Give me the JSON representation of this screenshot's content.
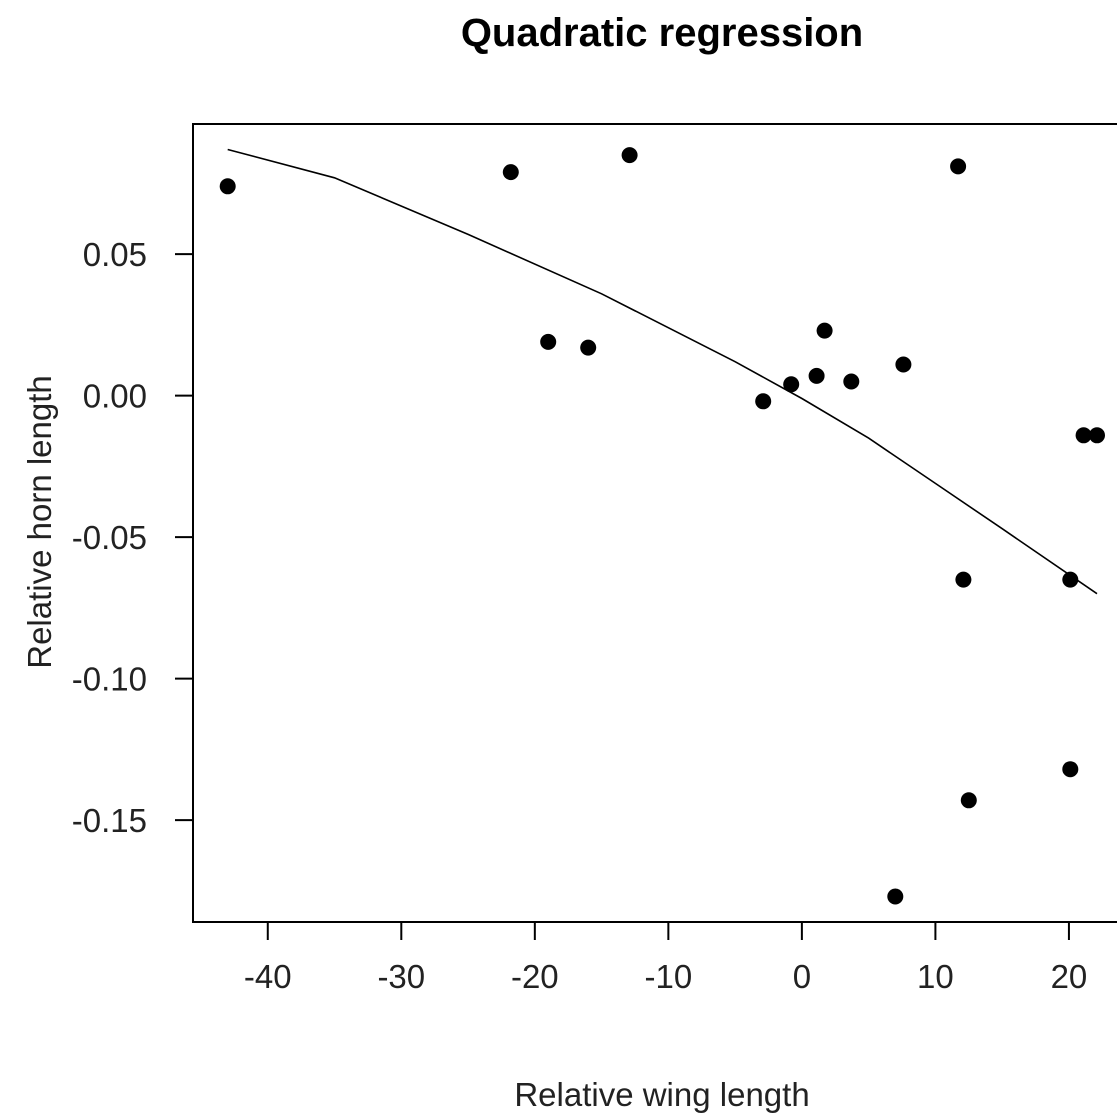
{
  "chart_data": {
    "type": "scatter",
    "title": "Quadratic regression",
    "xlabel": "Relative wing length",
    "ylabel": "Relative horn length",
    "xlim": [
      -45.6,
      23.6
    ],
    "ylim": [
      -0.186,
      0.096
    ],
    "x_ticks": [
      -40,
      -30,
      -20,
      -10,
      0,
      10,
      20
    ],
    "x_tick_labels": [
      "-40",
      "-30",
      "-20",
      "-10",
      "0",
      "10",
      "20"
    ],
    "y_ticks": [
      -0.15,
      -0.1,
      -0.05,
      0.0,
      0.05
    ],
    "y_tick_labels": [
      "-0.15",
      "-0.10",
      "-0.05",
      "0.00",
      "0.05"
    ],
    "grid": false,
    "points": [
      {
        "x": -43.0,
        "y": 0.074
      },
      {
        "x": -21.8,
        "y": 0.079
      },
      {
        "x": -19.0,
        "y": 0.019
      },
      {
        "x": -16.0,
        "y": 0.017
      },
      {
        "x": -12.9,
        "y": 0.085
      },
      {
        "x": -2.9,
        "y": -0.002
      },
      {
        "x": -0.8,
        "y": 0.004
      },
      {
        "x": 1.1,
        "y": 0.007
      },
      {
        "x": 1.7,
        "y": 0.023
      },
      {
        "x": 3.7,
        "y": 0.005
      },
      {
        "x": 7.0,
        "y": -0.177
      },
      {
        "x": 7.6,
        "y": 0.011
      },
      {
        "x": 11.7,
        "y": 0.081
      },
      {
        "x": 12.1,
        "y": -0.065
      },
      {
        "x": 12.5,
        "y": -0.143
      },
      {
        "x": 20.1,
        "y": -0.065
      },
      {
        "x": 20.1,
        "y": -0.132
      },
      {
        "x": 21.1,
        "y": -0.014
      },
      {
        "x": 22.1,
        "y": -0.014
      }
    ],
    "fit_line": {
      "x": [
        -43.0,
        -35.0,
        -25.0,
        -15.0,
        -5.0,
        0.0,
        5.0,
        10.0,
        15.0,
        22.1
      ],
      "y": [
        0.087,
        0.077,
        0.057,
        0.036,
        0.012,
        -0.001,
        -0.015,
        -0.031,
        -0.047,
        -0.07
      ]
    }
  }
}
